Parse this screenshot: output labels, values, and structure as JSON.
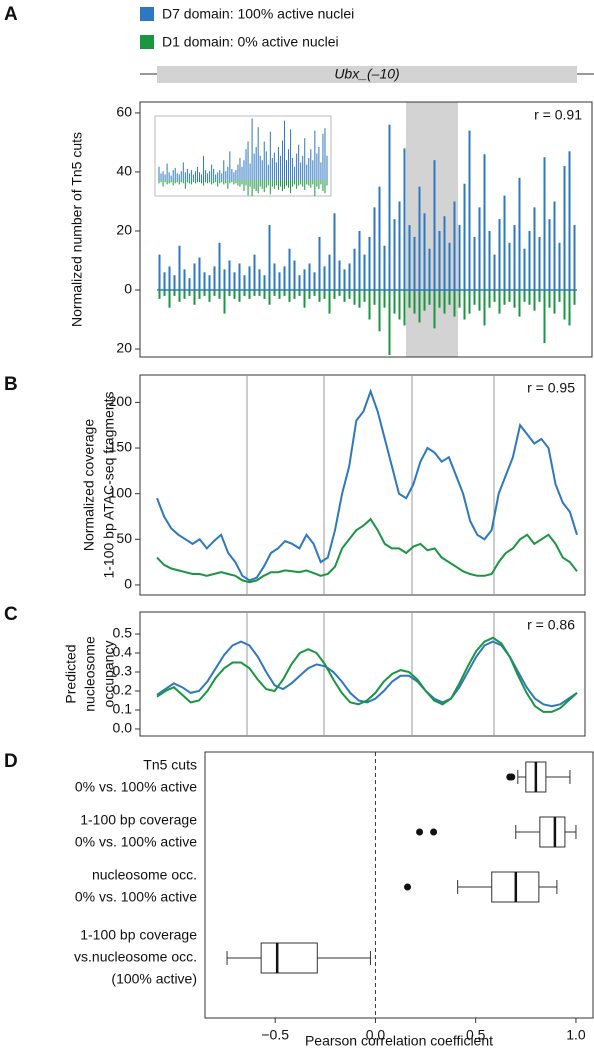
{
  "legend_track_label": "Ubx_(–10)",
  "chart_data": [
    {
      "type": "bar",
      "panel": "A",
      "y_label": "Normalized number of Tn5 cuts",
      "annotation": "r = 0.91",
      "ylim": [
        -22.7,
        63.7
      ],
      "yticks": [
        {
          "value": -20,
          "label": "20"
        },
        0,
        20,
        40,
        60
      ],
      "series": [
        {
          "name": "D7 domain: 100% active nuclei",
          "color": "#2e78c2",
          "values": [
            12,
            6,
            8,
            5,
            15,
            7,
            4,
            9,
            11,
            6,
            5,
            8,
            16,
            7,
            10,
            6,
            9,
            5,
            8,
            12,
            7,
            5,
            22,
            9,
            6,
            8,
            14,
            10,
            5,
            7,
            9,
            6,
            18,
            8,
            12,
            26,
            10,
            7,
            9,
            14,
            20,
            12,
            18,
            28,
            35,
            15,
            56,
            24,
            30,
            48,
            22,
            18,
            35,
            26,
            14,
            44,
            20,
            25,
            16,
            30,
            22,
            36,
            54,
            18,
            28,
            46,
            20,
            12,
            24,
            32,
            16,
            22,
            38,
            14,
            20,
            28,
            18,
            45,
            24,
            30,
            16,
            42,
            47,
            22
          ]
        },
        {
          "name": "D1 domain: 0% active nuclei",
          "color": "#1a9641",
          "values": [
            -3,
            -2,
            -6,
            -2,
            -4,
            -3,
            -2,
            -5,
            -3,
            -2,
            -4,
            -2,
            -3,
            -8,
            -2,
            -3,
            -4,
            -2,
            -3,
            -2,
            -2,
            -3,
            -5,
            -2,
            -3,
            -2,
            -4,
            -3,
            -2,
            -6,
            -3,
            -2,
            -4,
            -3,
            -8,
            -3,
            -2,
            -4,
            -3,
            -5,
            -6,
            -4,
            -10,
            -5,
            -14,
            -6,
            -22,
            -8,
            -10,
            -12,
            -6,
            -8,
            -11,
            -7,
            -5,
            -13,
            -6,
            -8,
            -5,
            -9,
            -6,
            -10,
            -8,
            -5,
            -7,
            -12,
            -6,
            -4,
            -8,
            -5,
            -4,
            -6,
            -9,
            -4,
            -5,
            -7,
            -4,
            -18,
            -6,
            -8,
            -4,
            -10,
            -12,
            -5
          ]
        }
      ]
    },
    {
      "type": "line",
      "panel": "B",
      "y_label": [
        "Normalized coverage",
        "1-100 bp ATAC-seq fragments"
      ],
      "annotation": "r = 0.95",
      "ylim": [
        -11,
        230
      ],
      "yticks": [
        0,
        50,
        100,
        150,
        200
      ],
      "series": [
        {
          "color": "#2e78c2",
          "values": [
            95,
            75,
            62,
            55,
            50,
            45,
            50,
            40,
            48,
            55,
            35,
            25,
            10,
            5,
            8,
            20,
            35,
            40,
            48,
            45,
            40,
            55,
            45,
            25,
            30,
            60,
            100,
            130,
            180,
            190,
            212,
            190,
            160,
            130,
            100,
            95,
            110,
            135,
            150,
            145,
            135,
            140,
            120,
            100,
            70,
            55,
            50,
            60,
            100,
            120,
            140,
            175,
            165,
            155,
            160,
            150,
            110,
            90,
            80,
            55
          ]
        },
        {
          "color": "#1a9641",
          "values": [
            30,
            22,
            18,
            16,
            14,
            12,
            12,
            10,
            12,
            14,
            12,
            10,
            5,
            3,
            5,
            10,
            14,
            14,
            16,
            15,
            14,
            16,
            13,
            10,
            12,
            20,
            40,
            50,
            60,
            65,
            72,
            60,
            45,
            40,
            40,
            35,
            42,
            45,
            38,
            40,
            30,
            25,
            20,
            15,
            12,
            10,
            10,
            12,
            25,
            35,
            40,
            50,
            55,
            45,
            50,
            55,
            45,
            30,
            25,
            15
          ]
        }
      ]
    },
    {
      "type": "line",
      "panel": "C",
      "y_label": [
        "Predicted",
        "nucleosome",
        "occupancy"
      ],
      "annotation": "r = 0.86",
      "ylim": [
        -0.037,
        0.616
      ],
      "yticks": [
        {
          "value": 0,
          "label": "0.0"
        },
        0.1,
        0.2,
        0.3,
        0.4,
        0.5
      ],
      "series": [
        {
          "color": "#2e78c2",
          "values": [
            0.18,
            0.21,
            0.24,
            0.22,
            0.19,
            0.2,
            0.25,
            0.32,
            0.39,
            0.44,
            0.46,
            0.44,
            0.38,
            0.3,
            0.23,
            0.21,
            0.24,
            0.28,
            0.32,
            0.34,
            0.33,
            0.3,
            0.25,
            0.19,
            0.15,
            0.14,
            0.16,
            0.2,
            0.25,
            0.28,
            0.28,
            0.25,
            0.2,
            0.16,
            0.14,
            0.16,
            0.22,
            0.3,
            0.38,
            0.44,
            0.46,
            0.44,
            0.38,
            0.3,
            0.22,
            0.16,
            0.13,
            0.12,
            0.13,
            0.16,
            0.19
          ]
        },
        {
          "color": "#1a9641",
          "values": [
            0.17,
            0.2,
            0.22,
            0.18,
            0.14,
            0.15,
            0.2,
            0.27,
            0.32,
            0.35,
            0.35,
            0.32,
            0.26,
            0.21,
            0.2,
            0.26,
            0.34,
            0.4,
            0.42,
            0.4,
            0.34,
            0.26,
            0.19,
            0.14,
            0.13,
            0.15,
            0.19,
            0.25,
            0.29,
            0.31,
            0.3,
            0.26,
            0.2,
            0.15,
            0.13,
            0.16,
            0.24,
            0.33,
            0.41,
            0.46,
            0.48,
            0.45,
            0.38,
            0.28,
            0.19,
            0.12,
            0.09,
            0.09,
            0.11,
            0.15,
            0.19
          ]
        }
      ]
    },
    {
      "type": "box",
      "panel": "D",
      "x_label": "Pearson correlation coefficient",
      "xlim": [
        -0.85,
        1.085
      ],
      "xticks": [
        {
          "value": -0.5,
          "label": "−0.5"
        },
        {
          "value": 0,
          "label": "0.0"
        },
        0.5,
        {
          "value": 1,
          "label": "1.0"
        }
      ],
      "categories": [
        [
          "Tn5 cuts",
          "0% vs. 100% active"
        ],
        [
          "1-100 bp coverage",
          "0% vs. 100% active"
        ],
        [
          "nucleosome occ.",
          "0% vs. 100% active"
        ],
        [
          "1-100 bp coverage",
          "vs.nucleosome occ.",
          "(100% active)"
        ]
      ],
      "boxes": [
        {
          "whisker_low": 0.71,
          "q1": 0.75,
          "median": 0.8,
          "q3": 0.85,
          "whisker_high": 0.97,
          "outliers": [
            0.67,
            0.68
          ]
        },
        {
          "whisker_low": 0.7,
          "q1": 0.82,
          "median": 0.895,
          "q3": 0.945,
          "whisker_high": 1.0,
          "outliers": [
            0.22,
            0.29
          ]
        },
        {
          "whisker_low": 0.41,
          "q1": 0.58,
          "median": 0.7,
          "q3": 0.815,
          "whisker_high": 0.905,
          "outliers": [
            0.16
          ]
        },
        {
          "whisker_low": -0.74,
          "q1": -0.57,
          "median": -0.49,
          "q3": -0.29,
          "whisker_high": -0.025,
          "outliers": []
        }
      ]
    }
  ]
}
